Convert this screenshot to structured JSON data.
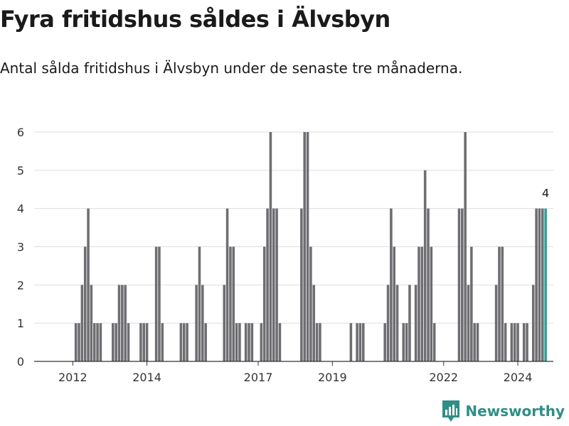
{
  "header": {
    "title": "Fyra fritidshus såldes i Älvsbyn",
    "subtitle": "Antal sålda fritidshus i Älvsbyn under de senaste tre månaderna."
  },
  "brand": {
    "name": "Newsworthy",
    "icon": "chart-logo-icon",
    "color": "#2f8f87"
  },
  "colors": {
    "bar": "#6e6e72",
    "highlight": "#2ca197",
    "grid": "#dedede",
    "axis": "#333333"
  },
  "chart_data": {
    "type": "bar",
    "x_start": "2011-01",
    "x_end": "2024-12",
    "ylim": [
      0,
      6
    ],
    "yticks": [
      0,
      1,
      2,
      3,
      4,
      5,
      6
    ],
    "xticks": [
      {
        "label": "2012",
        "x": "2012-01"
      },
      {
        "label": "2014",
        "x": "2014-01"
      },
      {
        "label": "2017",
        "x": "2017-01"
      },
      {
        "label": "2019",
        "x": "2019-01"
      },
      {
        "label": "2022",
        "x": "2022-01"
      },
      {
        "label": "2024",
        "x": "2024-01"
      }
    ],
    "grid": true,
    "highlight_last": true,
    "last_value_label": "4",
    "series": [
      {
        "x": [
          "2011-12",
          "2012-01",
          "2012-02",
          "2012-03",
          "2012-04",
          "2012-05",
          "2012-06",
          "2012-07",
          "2012-08",
          "2012-09",
          "2012-10",
          "2012-11",
          "2012-12",
          "2013-01",
          "2013-02",
          "2013-03",
          "2013-04",
          "2013-05",
          "2013-06",
          "2013-07",
          "2013-08",
          "2013-09",
          "2013-10",
          "2013-11",
          "2013-12",
          "2014-01",
          "2014-02",
          "2014-03",
          "2014-04",
          "2014-05",
          "2014-06",
          "2014-07",
          "2014-08",
          "2014-09",
          "2014-10",
          "2014-11",
          "2014-12",
          "2015-01",
          "2015-02",
          "2015-03",
          "2015-04",
          "2015-05",
          "2015-06",
          "2015-07",
          "2015-08",
          "2015-09",
          "2015-10",
          "2015-11",
          "2015-12",
          "2016-01",
          "2016-02",
          "2016-03",
          "2016-04",
          "2016-05",
          "2016-06",
          "2016-07",
          "2016-08",
          "2016-09",
          "2016-10",
          "2016-11",
          "2016-12",
          "2017-01",
          "2017-02",
          "2017-03",
          "2017-04",
          "2017-05",
          "2017-06",
          "2017-07",
          "2017-08",
          "2017-09",
          "2017-10",
          "2017-11",
          "2017-12",
          "2018-01",
          "2018-02",
          "2018-03",
          "2018-04",
          "2018-05",
          "2018-06",
          "2018-07",
          "2018-08",
          "2018-09",
          "2018-10",
          "2018-11",
          "2018-12",
          "2019-01",
          "2019-02",
          "2019-03",
          "2019-04",
          "2019-05",
          "2019-06",
          "2019-07",
          "2019-08",
          "2019-09",
          "2019-10",
          "2019-11",
          "2019-12",
          "2020-01",
          "2020-02",
          "2020-03",
          "2020-04",
          "2020-05",
          "2020-06",
          "2020-07",
          "2020-08",
          "2020-09",
          "2020-10",
          "2020-11",
          "2020-12",
          "2021-01",
          "2021-02",
          "2021-03",
          "2021-04",
          "2021-05",
          "2021-06",
          "2021-07",
          "2021-08",
          "2021-09",
          "2021-10",
          "2021-11",
          "2021-12",
          "2022-01",
          "2022-02",
          "2022-03",
          "2022-04",
          "2022-05",
          "2022-06",
          "2022-07",
          "2022-08",
          "2022-09",
          "2022-10",
          "2022-11",
          "2022-12",
          "2023-01",
          "2023-02",
          "2023-03",
          "2023-04",
          "2023-05",
          "2023-06",
          "2023-07",
          "2023-08",
          "2023-09",
          "2023-10",
          "2023-11",
          "2023-12",
          "2024-01",
          "2024-02",
          "2024-03",
          "2024-04",
          "2024-05",
          "2024-06",
          "2024-07",
          "2024-08",
          "2024-09",
          "2024-10"
        ],
        "values": [
          0,
          0,
          1,
          1,
          2,
          3,
          4,
          2,
          1,
          1,
          1,
          0,
          0,
          0,
          1,
          1,
          2,
          2,
          2,
          1,
          0,
          0,
          0,
          1,
          1,
          1,
          0,
          0,
          3,
          3,
          1,
          0,
          0,
          0,
          0,
          0,
          1,
          1,
          1,
          0,
          0,
          2,
          3,
          2,
          1,
          0,
          0,
          0,
          0,
          0,
          2,
          4,
          3,
          3,
          1,
          1,
          0,
          1,
          1,
          1,
          0,
          0,
          1,
          3,
          4,
          6,
          4,
          4,
          1,
          0,
          0,
          0,
          0,
          0,
          0,
          4,
          6,
          6,
          3,
          2,
          1,
          1,
          0,
          0,
          0,
          0,
          0,
          0,
          0,
          0,
          0,
          1,
          0,
          1,
          1,
          1,
          0,
          0,
          0,
          0,
          0,
          0,
          1,
          2,
          4,
          3,
          2,
          0,
          1,
          1,
          2,
          0,
          2,
          3,
          3,
          5,
          4,
          3,
          1,
          0,
          0,
          0,
          0,
          0,
          0,
          0,
          4,
          4,
          6,
          2,
          3,
          1,
          1,
          0,
          0,
          0,
          0,
          0,
          2,
          3,
          3,
          1,
          0,
          1,
          1,
          1,
          0,
          1,
          1,
          0,
          2,
          4,
          4,
          4,
          4
        ]
      }
    ]
  }
}
